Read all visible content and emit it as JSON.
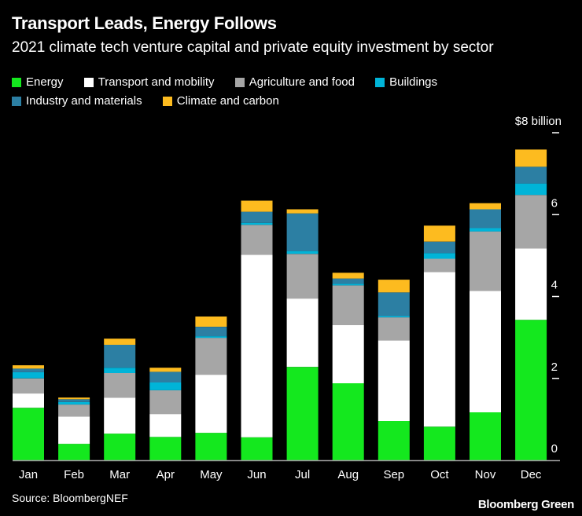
{
  "header": {
    "title": "Transport Leads, Energy Follows",
    "subtitle": "2021 climate tech venture capital and private equity investment by sector"
  },
  "footer": {
    "source": "Source: BloombergNEF",
    "brand": "Bloomberg Green"
  },
  "chart_data": {
    "type": "bar",
    "stacked": true,
    "title": "Transport Leads, Energy Follows",
    "subtitle": "2021 climate tech venture capital and private equity investment by sector",
    "xlabel": "",
    "ylabel": "$ billion",
    "y_unit_label": "$8 billion",
    "ylim": [
      0,
      8
    ],
    "yticks": [
      0,
      2,
      4,
      6,
      8
    ],
    "ytick_labels": [
      "0",
      "2",
      "4",
      "6",
      "$8 billion"
    ],
    "y_axis_position": "right",
    "grid": false,
    "legend_position": "top-left",
    "categories": [
      "Jan",
      "Feb",
      "Mar",
      "Apr",
      "May",
      "Jun",
      "Jul",
      "Aug",
      "Sep",
      "Oct",
      "Nov",
      "Dec"
    ],
    "series": [
      {
        "name": "Energy",
        "color": "#14e81e",
        "values": [
          1.28,
          0.4,
          0.65,
          0.57,
          0.67,
          0.56,
          2.28,
          1.88,
          0.96,
          0.82,
          1.17,
          3.43
        ]
      },
      {
        "name": "Transport and mobility",
        "color": "#ffffff",
        "values": [
          0.35,
          0.67,
          0.88,
          0.56,
          1.42,
          4.46,
          1.67,
          1.42,
          1.97,
          3.78,
          2.97,
          1.74
        ]
      },
      {
        "name": "Agriculture and food",
        "color": "#a6a6a6",
        "values": [
          0.37,
          0.29,
          0.6,
          0.58,
          0.9,
          0.73,
          1.09,
          0.97,
          0.56,
          0.32,
          1.45,
          1.31
        ]
      },
      {
        "name": "Buildings",
        "color": "#00b4d8",
        "values": [
          0.15,
          0.06,
          0.13,
          0.19,
          0.04,
          0.05,
          0.07,
          0.04,
          0.03,
          0.14,
          0.08,
          0.28
        ]
      },
      {
        "name": "Industry and materials",
        "color": "#2c7fa3",
        "values": [
          0.09,
          0.07,
          0.56,
          0.26,
          0.23,
          0.27,
          0.92,
          0.13,
          0.58,
          0.28,
          0.46,
          0.41
        ]
      },
      {
        "name": "Climate and carbon",
        "color": "#fdbb1f",
        "values": [
          0.08,
          0.04,
          0.15,
          0.1,
          0.25,
          0.27,
          0.1,
          0.14,
          0.31,
          0.39,
          0.15,
          0.42
        ]
      }
    ]
  }
}
